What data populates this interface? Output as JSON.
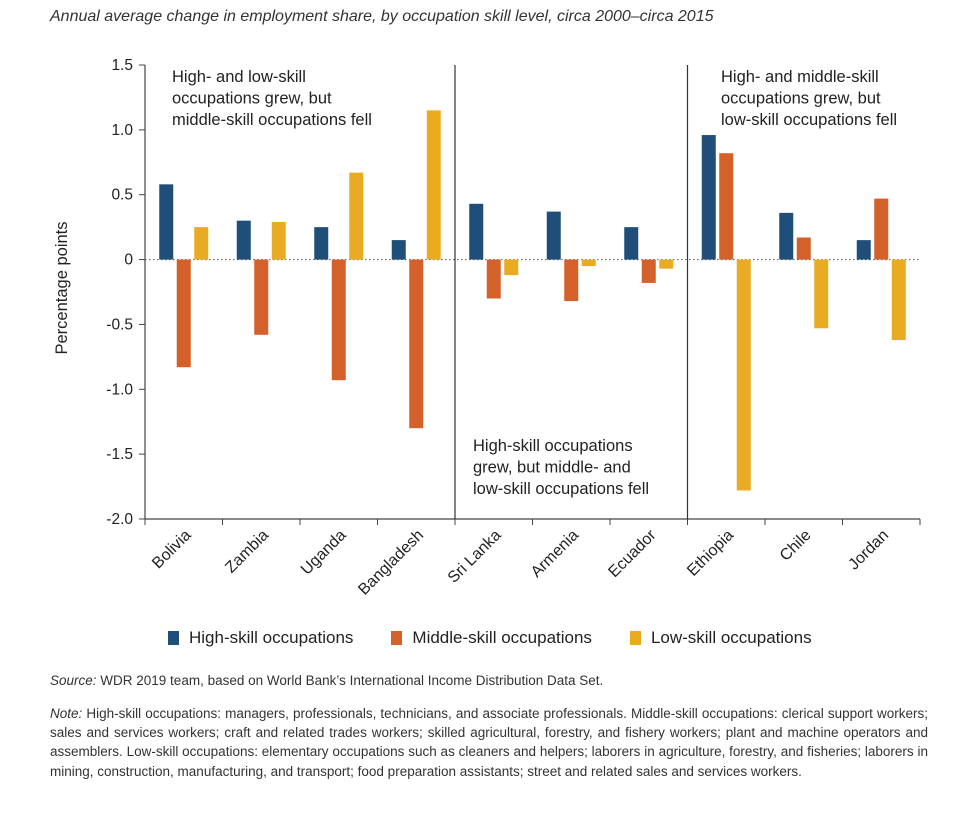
{
  "subtitle": "Annual average change in employment share, by occupation skill level, circa 2000–circa 2015",
  "colors": {
    "high": "#1f4e79",
    "middle": "#d4602a",
    "low": "#e9ab22"
  },
  "chart_data": {
    "type": "bar",
    "categories": [
      "Bolivia",
      "Zambia",
      "Uganda",
      "Bangladesh",
      "Sri Lanka",
      "Armenia",
      "Ecuador",
      "Ethiopia",
      "Chile",
      "Jordan"
    ],
    "series": [
      {
        "name": "High-skill occupations",
        "values": [
          0.58,
          0.3,
          0.25,
          0.15,
          0.43,
          0.37,
          0.25,
          0.96,
          0.36,
          0.15
        ]
      },
      {
        "name": "Middle-skill occupations",
        "values": [
          -0.83,
          -0.58,
          -0.93,
          -1.3,
          -0.3,
          -0.32,
          -0.18,
          0.82,
          0.17,
          0.47
        ]
      },
      {
        "name": "Low-skill occupations",
        "values": [
          0.25,
          0.29,
          0.67,
          1.15,
          -0.12,
          -0.05,
          -0.07,
          -1.78,
          -0.53,
          -0.62
        ]
      }
    ],
    "ylabel": "Percentage points",
    "xlabel": "",
    "ylim": [
      -2.0,
      1.5
    ],
    "yticks": [
      1.5,
      1.0,
      0.5,
      0,
      -0.5,
      -1.0,
      -1.5,
      -2.0
    ],
    "ytick_labels": [
      "1.5",
      "1.0",
      "0.5",
      "0",
      "-0.5",
      "-1.0",
      "-1.5",
      "-2.0"
    ],
    "groups": [
      {
        "categories": [
          "Bolivia",
          "Zambia",
          "Uganda",
          "Bangladesh"
        ],
        "annotation": [
          "High- and low-skill",
          "occupations grew, but",
          "middle-skill occupations fell"
        ]
      },
      {
        "categories": [
          "Sri Lanka",
          "Armenia",
          "Ecuador"
        ],
        "annotation": [
          "High-skill occupations",
          "grew, but middle- and",
          "low-skill occupations fell"
        ]
      },
      {
        "categories": [
          "Ethiopia",
          "Chile",
          "Jordan"
        ],
        "annotation": [
          "High- and middle-skill",
          "occupations grew, but",
          "low-skill occupations fell"
        ]
      }
    ],
    "grid": false,
    "legend_position": "bottom"
  },
  "source": {
    "label": "Source:",
    "text": " WDR 2019 team, based on World Bank’s International Income Distribution Data Set."
  },
  "note": {
    "label": "Note:",
    "text": " High-skill occupations: managers, professionals, technicians, and associate professionals. Middle-skill occupations: clerical support workers; sales and services workers; craft and related trades workers; skilled agricultural, forestry, and fishery workers; plant and machine operators and assemblers. Low-skill occupations: elementary occupations such as cleaners and helpers; laborers in agriculture, forestry, and fisheries; laborers in mining, construction, manufacturing, and transport; food preparation assistants; street and related sales and services workers."
  }
}
